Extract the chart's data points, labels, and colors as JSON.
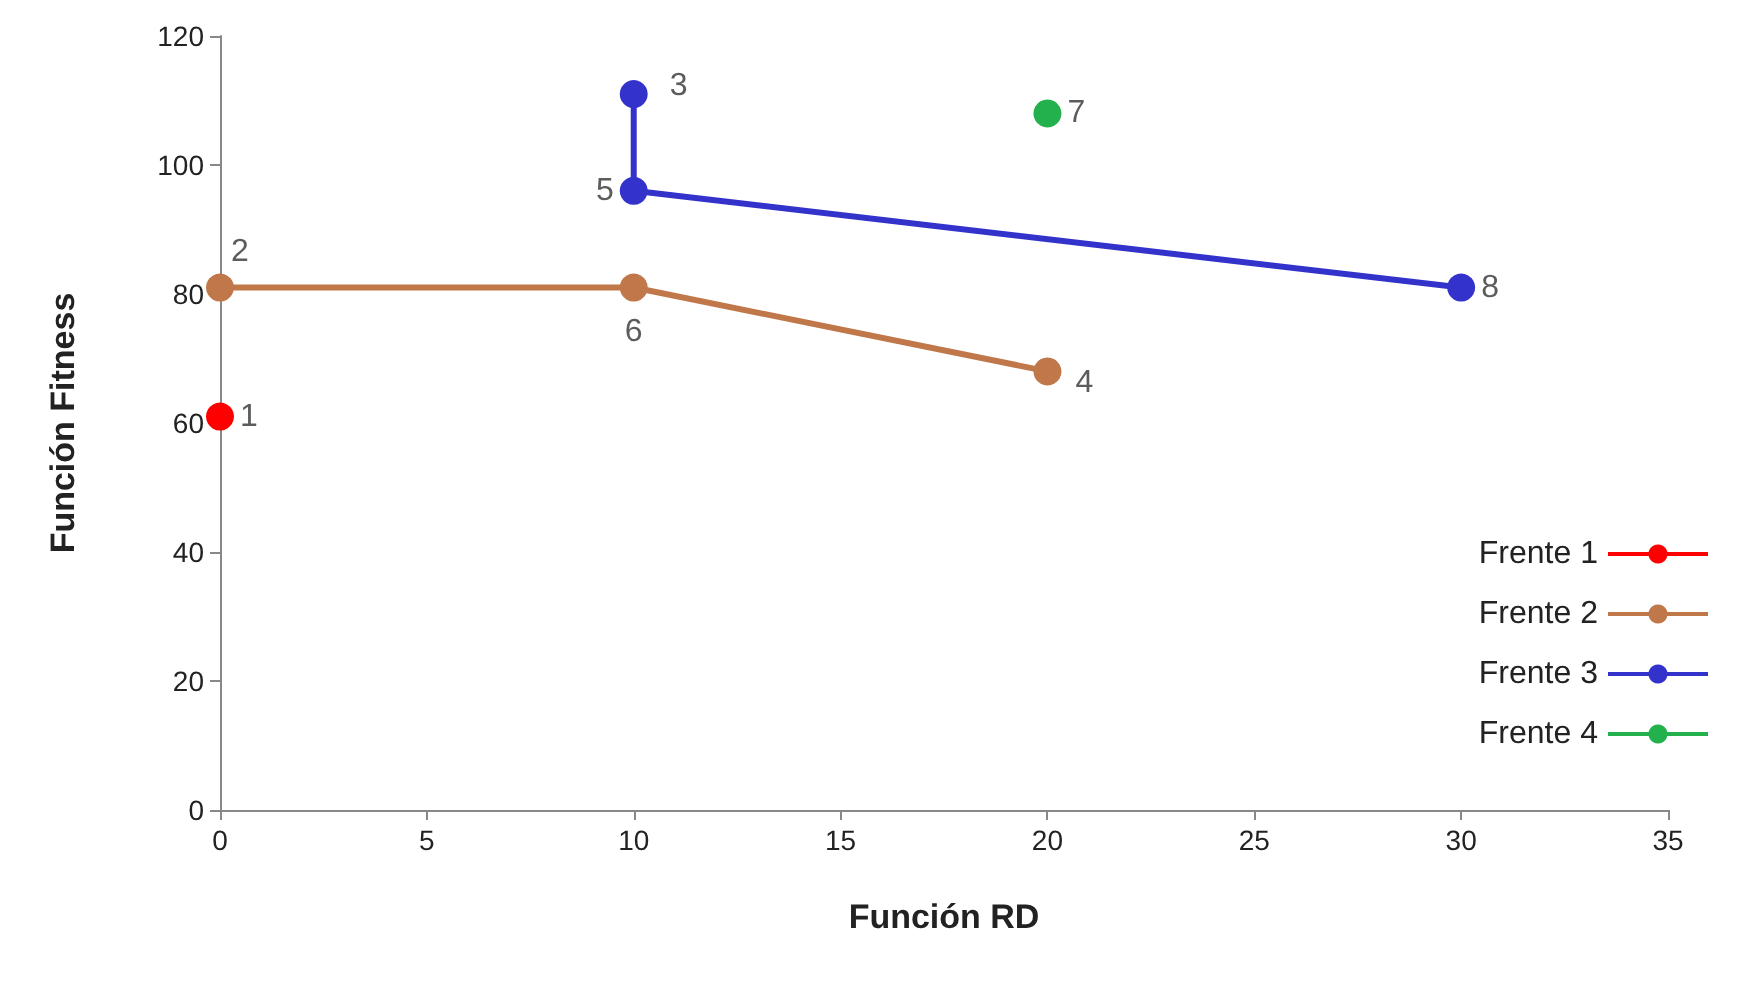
{
  "chart_data": {
    "type": "line",
    "xlabel": "Función RD",
    "ylabel": "Función Fitness",
    "xlim": [
      0,
      35
    ],
    "xticks": [
      0,
      5,
      10,
      15,
      20,
      25,
      30,
      35
    ],
    "ylim": [
      0,
      120
    ],
    "yticks": [
      0,
      20,
      40,
      60,
      80,
      100,
      120
    ],
    "grid": false,
    "legend": "bottom right",
    "marker": "circle",
    "line_style": "solid",
    "series": [
      {
        "name": "Frente 1",
        "color": "#ff0000",
        "x": [
          0
        ],
        "values": [
          61
        ]
      },
      {
        "name": "Frente 2",
        "color": "#c0784a",
        "x": [
          0,
          10,
          20
        ],
        "values": [
          81,
          81,
          68
        ]
      },
      {
        "name": "Frente 3",
        "color": "#3333cc",
        "x": [
          10,
          10,
          30
        ],
        "values": [
          111,
          96,
          81
        ]
      },
      {
        "name": "Frente 4",
        "color": "#22b14c",
        "x": [
          20
        ],
        "values": [
          108
        ]
      }
    ],
    "annotations": [
      {
        "text": "1",
        "x": 0,
        "y": 61
      },
      {
        "text": "2",
        "x": 0,
        "y": 81
      },
      {
        "text": "3",
        "x": 10,
        "y": 111
      },
      {
        "text": "4",
        "x": 20,
        "y": 68
      },
      {
        "text": "5",
        "x": 10,
        "y": 96
      },
      {
        "text": "6",
        "x": 10,
        "y": 81
      },
      {
        "text": "7",
        "x": 20,
        "y": 108
      },
      {
        "text": "8",
        "x": 30,
        "y": 81
      }
    ]
  }
}
